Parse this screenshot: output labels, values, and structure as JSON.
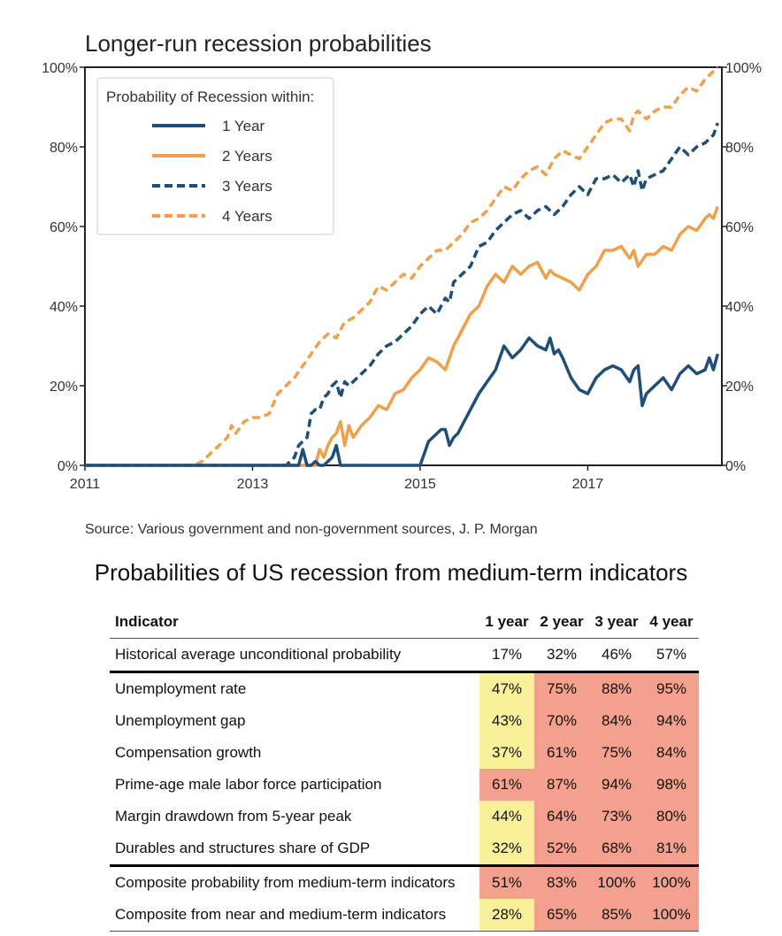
{
  "chart_data": {
    "type": "line",
    "title": "Longer-run recession probabilities",
    "xlim": [
      2011,
      2018.6
    ],
    "ylim": [
      0,
      100
    ],
    "x_ticks": [
      2011,
      2013,
      2015,
      2017
    ],
    "x_tick_labels": [
      "2011",
      "2013",
      "2015",
      "2017"
    ],
    "y_ticks": [
      0,
      20,
      40,
      60,
      80,
      100
    ],
    "y_tick_labels": [
      "0%",
      "20%",
      "40%",
      "60%",
      "80%",
      "100%"
    ],
    "legend_title": "Probability of Recession within:",
    "legend_position": "top-left",
    "grid": false,
    "series": [
      {
        "name": "1 Year",
        "color": "#1f4e79",
        "dash": false,
        "x": [
          2011,
          2013.4,
          2013.55,
          2013.6,
          2013.65,
          2013.7,
          2013.75,
          2013.8,
          2013.85,
          2013.9,
          2013.95,
          2014.0,
          2014.05,
          2014.1,
          2014.15,
          2014.2,
          2014.5,
          2015.0,
          2015.05,
          2015.1,
          2015.15,
          2015.2,
          2015.25,
          2015.3,
          2015.35,
          2015.4,
          2015.45,
          2015.5,
          2015.6,
          2015.7,
          2015.8,
          2015.9,
          2016.0,
          2016.1,
          2016.2,
          2016.3,
          2016.35,
          2016.4,
          2016.5,
          2016.55,
          2016.6,
          2016.65,
          2016.7,
          2016.8,
          2016.9,
          2017.0,
          2017.1,
          2017.2,
          2017.3,
          2017.4,
          2017.5,
          2017.55,
          2017.6,
          2017.65,
          2017.7,
          2017.8,
          2017.9,
          2018.0,
          2018.1,
          2018.2,
          2018.3,
          2018.4,
          2018.45,
          2018.5,
          2018.55
        ],
        "y": [
          0,
          0,
          0,
          4,
          0,
          0,
          1,
          0,
          0,
          1,
          2,
          5,
          0,
          0,
          0,
          0,
          0,
          0,
          3,
          6,
          7,
          8,
          9,
          9,
          5,
          7,
          8,
          10,
          14,
          18,
          21,
          24,
          30,
          27,
          29,
          32,
          31,
          30,
          29,
          32,
          28,
          29,
          27,
          22,
          19,
          18,
          22,
          24,
          25,
          24,
          21,
          24,
          25,
          15,
          18,
          20,
          22,
          19,
          23,
          25,
          23,
          24,
          27,
          24,
          28
        ]
      },
      {
        "name": "2 Years",
        "color": "#f0a04b",
        "dash": false,
        "x": [
          2011,
          2013.75,
          2013.8,
          2013.85,
          2013.9,
          2013.95,
          2014.0,
          2014.05,
          2014.1,
          2014.15,
          2014.2,
          2014.3,
          2014.4,
          2014.5,
          2014.6,
          2014.7,
          2014.8,
          2014.9,
          2015.0,
          2015.1,
          2015.2,
          2015.3,
          2015.35,
          2015.4,
          2015.5,
          2015.6,
          2015.7,
          2015.8,
          2015.9,
          2016.0,
          2016.1,
          2016.2,
          2016.3,
          2016.4,
          2016.5,
          2016.55,
          2016.6,
          2016.7,
          2016.8,
          2016.9,
          2017.0,
          2017.1,
          2017.2,
          2017.3,
          2017.4,
          2017.5,
          2017.55,
          2017.6,
          2017.7,
          2017.8,
          2017.9,
          2018.0,
          2018.1,
          2018.2,
          2018.3,
          2018.4,
          2018.45,
          2018.5,
          2018.55
        ],
        "y": [
          0,
          0,
          4,
          2,
          5,
          7,
          8,
          11,
          5,
          10,
          7,
          10,
          12,
          15,
          14,
          18,
          19,
          22,
          24,
          27,
          26,
          24,
          27,
          30,
          34,
          38,
          40,
          45,
          48,
          46,
          50,
          48,
          50,
          51,
          47,
          49,
          48,
          47,
          46,
          44,
          48,
          50,
          54,
          54,
          55,
          52,
          54,
          50,
          53,
          53,
          55,
          54,
          58,
          60,
          59,
          62,
          63,
          62,
          65
        ]
      },
      {
        "name": "3 Years",
        "color": "#1f4e79",
        "dash": true,
        "x": [
          2011,
          2013.4,
          2013.5,
          2013.55,
          2013.6,
          2013.65,
          2013.7,
          2013.75,
          2013.8,
          2013.85,
          2013.9,
          2013.95,
          2014.0,
          2014.05,
          2014.1,
          2014.15,
          2014.2,
          2014.3,
          2014.4,
          2014.5,
          2014.6,
          2014.7,
          2014.8,
          2014.9,
          2015.0,
          2015.1,
          2015.2,
          2015.3,
          2015.35,
          2015.4,
          2015.5,
          2015.6,
          2015.7,
          2015.8,
          2015.9,
          2016.0,
          2016.1,
          2016.2,
          2016.3,
          2016.4,
          2016.5,
          2016.55,
          2016.6,
          2016.7,
          2016.8,
          2016.9,
          2017.0,
          2017.1,
          2017.2,
          2017.3,
          2017.4,
          2017.5,
          2017.55,
          2017.6,
          2017.65,
          2017.7,
          2017.8,
          2017.9,
          2018.0,
          2018.1,
          2018.2,
          2018.3,
          2018.4,
          2018.45,
          2018.5,
          2018.55
        ],
        "y": [
          0,
          0,
          2,
          5,
          6,
          7,
          13,
          14,
          14,
          17,
          18,
          20,
          21,
          17,
          21,
          20,
          21,
          23,
          25,
          28,
          30,
          31,
          33,
          35,
          38,
          40,
          38,
          42,
          41,
          46,
          48,
          50,
          55,
          56,
          59,
          61,
          63,
          64,
          62,
          64,
          65,
          64,
          63,
          65,
          68,
          70,
          68,
          72,
          72,
          73,
          71,
          73,
          70,
          74,
          69,
          72,
          73,
          74,
          77,
          80,
          78,
          80,
          81,
          82,
          83,
          86
        ]
      },
      {
        "name": "4 Years",
        "color": "#f0a04b",
        "dash": true,
        "x": [
          2011,
          2012.3,
          2012.4,
          2012.5,
          2012.6,
          2012.7,
          2012.75,
          2012.8,
          2012.9,
          2013.0,
          2013.1,
          2013.2,
          2013.3,
          2013.4,
          2013.5,
          2013.6,
          2013.7,
          2013.8,
          2013.9,
          2014.0,
          2014.1,
          2014.2,
          2014.3,
          2014.4,
          2014.5,
          2014.6,
          2014.7,
          2014.8,
          2014.9,
          2015.0,
          2015.1,
          2015.2,
          2015.3,
          2015.4,
          2015.5,
          2015.6,
          2015.7,
          2015.8,
          2015.9,
          2016.0,
          2016.1,
          2016.2,
          2016.3,
          2016.4,
          2016.5,
          2016.6,
          2016.7,
          2016.8,
          2016.9,
          2017.0,
          2017.1,
          2017.2,
          2017.3,
          2017.4,
          2017.5,
          2017.55,
          2017.6,
          2017.7,
          2017.8,
          2017.9,
          2018.0,
          2018.1,
          2018.2,
          2018.3,
          2018.4,
          2018.45,
          2018.5,
          2018.55
        ],
        "y": [
          0,
          0,
          1,
          3,
          5,
          7,
          10,
          8,
          11,
          12,
          12,
          13,
          18,
          20,
          22,
          25,
          28,
          31,
          33,
          32,
          36,
          37,
          39,
          41,
          45,
          44,
          46,
          48,
          47,
          50,
          52,
          54,
          54,
          56,
          58,
          61,
          62,
          64,
          67,
          70,
          69,
          72,
          74,
          75,
          73,
          77,
          79,
          78,
          77,
          80,
          83,
          86,
          87,
          87,
          84,
          88,
          89,
          87,
          89,
          90,
          90,
          93,
          95,
          94,
          97,
          98,
          99,
          100
        ]
      }
    ],
    "source": "Source: Various government and non-government sources, J. P. Morgan"
  },
  "table": {
    "title": "Probabilities of US recession from medium-term indicators",
    "headers": [
      "Indicator",
      "1 year",
      "2 year",
      "3 year",
      "4 year"
    ],
    "highlight_colors": {
      "y": "#f9f19a",
      "r": "#f4a08e"
    },
    "historical": {
      "label": "Historical average unconditional probability",
      "values": [
        "17%",
        "32%",
        "46%",
        "57%"
      ]
    },
    "indicators": [
      {
        "label": "Unemployment rate",
        "values": [
          "47%",
          "75%",
          "88%",
          "95%"
        ],
        "colors": [
          "y",
          "r",
          "r",
          "r"
        ]
      },
      {
        "label": "Unemployment gap",
        "values": [
          "43%",
          "70%",
          "84%",
          "94%"
        ],
        "colors": [
          "y",
          "r",
          "r",
          "r"
        ]
      },
      {
        "label": "Compensation growth",
        "values": [
          "37%",
          "61%",
          "75%",
          "84%"
        ],
        "colors": [
          "y",
          "r",
          "r",
          "r"
        ]
      },
      {
        "label": "Prime-age male labor force participation",
        "values": [
          "61%",
          "87%",
          "94%",
          "98%"
        ],
        "colors": [
          "r",
          "r",
          "r",
          "r"
        ]
      },
      {
        "label": "Margin drawdown from 5-year peak",
        "values": [
          "44%",
          "64%",
          "73%",
          "80%"
        ],
        "colors": [
          "y",
          "r",
          "r",
          "r"
        ]
      },
      {
        "label": "Durables and structures share of GDP",
        "values": [
          "32%",
          "52%",
          "68%",
          "81%"
        ],
        "colors": [
          "y",
          "r",
          "r",
          "r"
        ]
      }
    ],
    "composites": [
      {
        "label": "Composite probability from medium-term indicators",
        "values": [
          "51%",
          "83%",
          "100%",
          "100%"
        ],
        "colors": [
          "r",
          "r",
          "r",
          "r"
        ]
      },
      {
        "label": "Composite from near and medium-term indicators",
        "values": [
          "28%",
          "65%",
          "85%",
          "100%"
        ],
        "colors": [
          "y",
          "r",
          "r",
          "r"
        ]
      }
    ]
  }
}
